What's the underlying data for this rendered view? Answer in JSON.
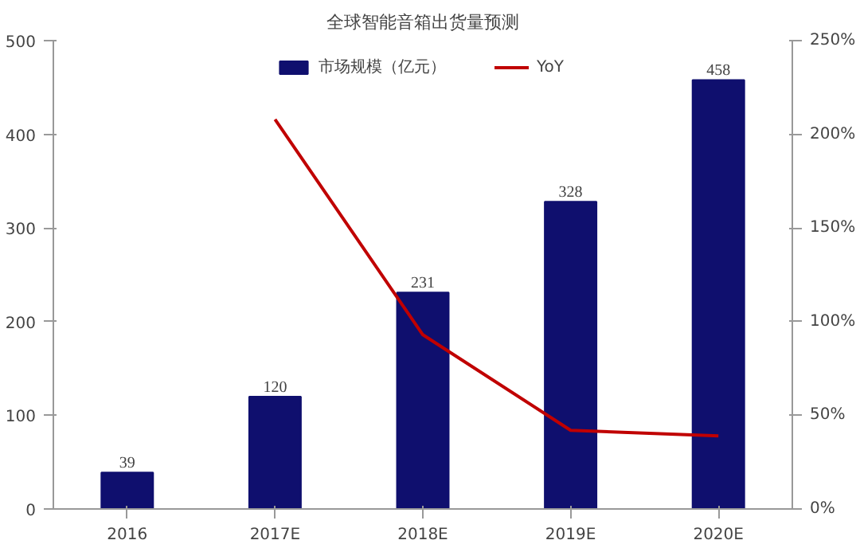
{
  "chart_data": {
    "type": "bar",
    "title": "全球智能音箱出货量预测",
    "categories": [
      "2016",
      "2017E",
      "2018E",
      "2019E",
      "2020E"
    ],
    "series": [
      {
        "name": "市场规模（亿元）",
        "color": "#0f0f6e",
        "values": [
          39,
          120,
          231,
          328,
          458
        ],
        "value_labels": [
          "39",
          "120",
          "231",
          "328",
          "458"
        ]
      },
      {
        "name": "YoY",
        "type": "line",
        "axis": "y2",
        "color": "#c00000",
        "values": [
          null,
          208,
          93,
          42,
          39
        ]
      }
    ],
    "ylim": [
      0,
      500
    ],
    "yticks": [
      0,
      100,
      200,
      300,
      400,
      500
    ],
    "y2lim": [
      0,
      250
    ],
    "y2ticks": [
      {
        "value": 0,
        "label": "0%"
      },
      {
        "value": 50,
        "label": "50%"
      },
      {
        "value": 100,
        "label": "100%"
      },
      {
        "value": 150,
        "label": "150%"
      },
      {
        "value": 200,
        "label": "200%"
      },
      {
        "value": 250,
        "label": "250%"
      }
    ],
    "legend": "top",
    "grid": false
  }
}
